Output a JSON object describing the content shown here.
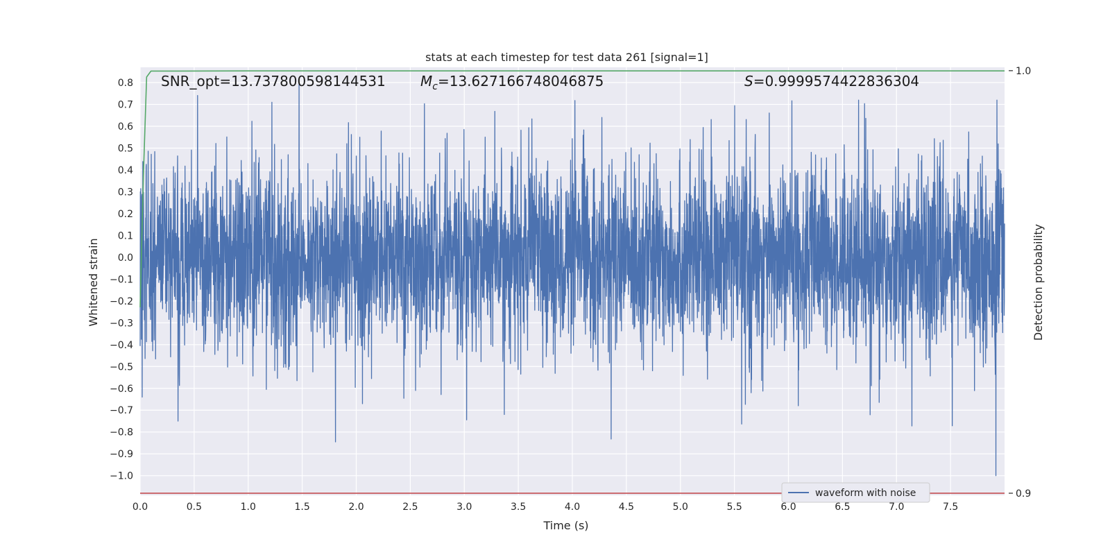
{
  "chart_data": {
    "type": "line",
    "title": "stats at each timestep for test data 261 [signal=1]",
    "xlabel": "Time (s)",
    "ylabel": "Whitened strain",
    "y2label": "Detection probability",
    "xlim": [
      0.0,
      8.0
    ],
    "ylim": [
      -1.09,
      0.87
    ],
    "y2lim": [
      0.8995,
      1.0008
    ],
    "xticks": [
      "0.0",
      "0.5",
      "1.0",
      "1.5",
      "2.0",
      "2.5",
      "3.0",
      "3.5",
      "4.0",
      "4.5",
      "5.0",
      "5.5",
      "6.0",
      "6.5",
      "7.0",
      "7.5"
    ],
    "yticks": [
      "0.8",
      "0.7",
      "0.6",
      "0.5",
      "0.4",
      "0.3",
      "0.2",
      "0.1",
      "0.0",
      "−0.1",
      "−0.2",
      "−0.3",
      "−0.4",
      "−0.5",
      "−0.6",
      "−0.7",
      "−0.8",
      "−0.9",
      "−1.0"
    ],
    "y2ticks": [
      "1.0",
      "0.9"
    ],
    "grid": true,
    "legend_position": "bottom-right",
    "annotations": {
      "snr": "SNR_opt=13.737800598144531",
      "mc_symbol": "M",
      "mc_sub": "c",
      "mc_value": "=13.627166748046875",
      "s_symbol": "S",
      "s_value": "=0.9999574422836304"
    },
    "series": [
      {
        "name": "waveform with noise",
        "color": "#4c72b0",
        "axis": "left",
        "kind": "noise",
        "x_range": [
          0.0,
          8.0
        ],
        "typical_amplitude": 0.2,
        "approx_peaks": [
          [
            0.02,
            -0.64
          ],
          [
            0.35,
            -0.75
          ],
          [
            1.47,
            0.8
          ],
          [
            1.22,
            0.71
          ],
          [
            2.55,
            -0.61
          ],
          [
            3.37,
            -0.72
          ],
          [
            6.65,
            0.72
          ],
          [
            7.92,
            -1.0
          ],
          [
            7.93,
            0.72
          ]
        ]
      },
      {
        "name": "",
        "color": "#55a868",
        "axis": "right",
        "kind": "line",
        "points": [
          [
            0.0,
            0.944
          ],
          [
            0.03,
            0.975
          ],
          [
            0.06,
            0.9985
          ],
          [
            0.1,
            0.9999
          ],
          [
            1.0,
            0.99995
          ],
          [
            8.0,
            0.99995
          ]
        ]
      },
      {
        "name": "",
        "color": "#c44e52",
        "axis": "right",
        "kind": "line",
        "points": [
          [
            0.0,
            0.9
          ],
          [
            8.0,
            0.9
          ]
        ]
      }
    ]
  }
}
